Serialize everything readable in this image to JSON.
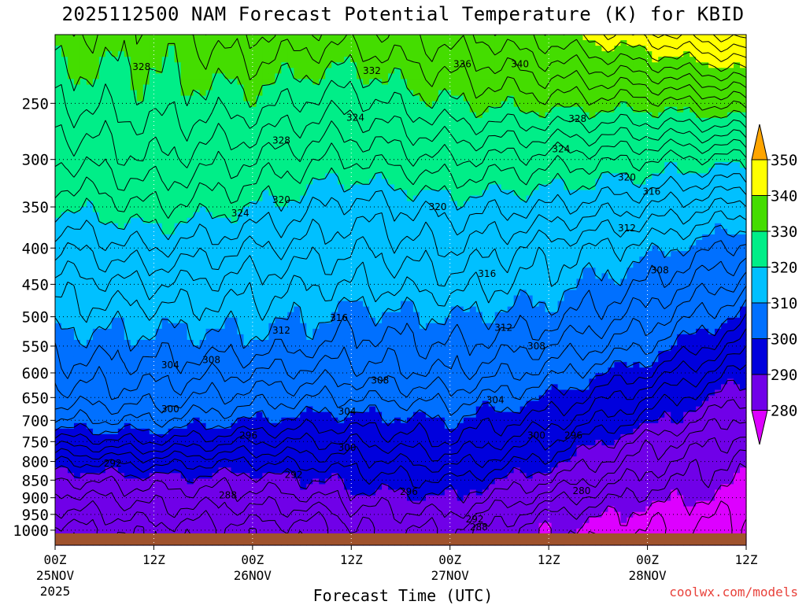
{
  "chart_data": {
    "type": "heatmap",
    "title": "2025112500 NAM Forecast Potential Temperature (K) for KBID",
    "xlabel": "Forecast Time (UTC)",
    "ylabel": "",
    "y_scale": "log-pressure",
    "ylim": [
      1050,
      200
    ],
    "xlim": [
      0,
      84
    ],
    "y_ticks": [
      250,
      300,
      350,
      400,
      450,
      500,
      550,
      600,
      650,
      700,
      750,
      800,
      850,
      900,
      950,
      1000
    ],
    "x_ticks": [
      {
        "hour": 0,
        "line1": "00Z",
        "line2": "25NOV",
        "line3": "2025"
      },
      {
        "hour": 12,
        "line1": "12Z",
        "line2": "",
        "line3": ""
      },
      {
        "hour": 24,
        "line1": "00Z",
        "line2": "26NOV",
        "line3": ""
      },
      {
        "hour": 36,
        "line1": "12Z",
        "line2": "",
        "line3": ""
      },
      {
        "hour": 48,
        "line1": "00Z",
        "line2": "27NOV",
        "line3": ""
      },
      {
        "hour": 60,
        "line1": "12Z",
        "line2": "",
        "line3": ""
      },
      {
        "hour": 72,
        "line1": "00Z",
        "line2": "28NOV",
        "line3": ""
      },
      {
        "hour": 84,
        "line1": "12Z",
        "line2": "",
        "line3": ""
      }
    ],
    "grid": true,
    "colorbar": {
      "placement": "right",
      "labels": [
        "350",
        "340",
        "330",
        "320",
        "310",
        "300",
        "290",
        "280"
      ],
      "bands": [
        {
          "from": 350,
          "to": 360,
          "color": "#ffa500"
        },
        {
          "from": 340,
          "to": 350,
          "color": "#ffff00"
        },
        {
          "from": 330,
          "to": 340,
          "color": "#44dd00"
        },
        {
          "from": 320,
          "to": 330,
          "color": "#00ee88"
        },
        {
          "from": 310,
          "to": 320,
          "color": "#00c0ff"
        },
        {
          "from": 300,
          "to": 310,
          "color": "#0070ff"
        },
        {
          "from": 290,
          "to": 300,
          "color": "#0000dd"
        },
        {
          "from": 280,
          "to": 290,
          "color": "#7000e8"
        },
        {
          "from": 270,
          "to": 280,
          "color": "#dd00ff"
        }
      ]
    },
    "contour_interval": 2,
    "theta_profiles_hours": [
      0,
      12,
      24,
      33,
      36,
      48,
      60,
      72,
      84
    ],
    "theta_profiles_pressures": [
      1000,
      950,
      900,
      850,
      800,
      750,
      700,
      650,
      600,
      550,
      500,
      450,
      400,
      350,
      300,
      250,
      200
    ],
    "theta_profiles": [
      [
        281,
        283,
        285,
        288,
        292,
        297,
        302,
        305,
        307,
        309,
        311,
        313,
        316,
        320,
        324,
        328,
        332
      ],
      [
        283,
        285,
        287,
        289,
        293,
        298,
        302,
        305,
        307,
        309,
        311,
        314,
        318,
        322,
        326,
        329,
        331
      ],
      [
        283,
        285,
        287,
        289,
        292,
        296,
        300,
        303,
        306,
        309,
        311,
        313,
        316,
        320,
        324,
        329,
        334
      ],
      [
        283,
        285,
        288,
        290,
        293,
        296,
        299,
        302,
        305,
        308,
        310,
        312,
        315,
        318,
        322,
        327,
        333
      ],
      [
        286,
        287,
        289,
        291,
        293,
        296,
        299,
        302,
        305,
        307,
        309,
        312,
        314,
        317,
        322,
        327,
        333
      ],
      [
        286,
        288,
        290,
        292,
        295,
        298,
        300,
        303,
        306,
        308,
        310,
        313,
        316,
        319,
        324,
        330,
        335
      ],
      [
        280,
        282,
        285,
        288,
        291,
        294,
        297,
        300,
        303,
        306,
        309,
        311,
        313,
        318,
        323,
        331,
        339
      ],
      [
        278,
        279,
        281,
        283,
        285,
        287,
        291,
        294,
        298,
        302,
        305,
        308,
        311,
        316,
        322,
        331,
        343
      ],
      [
        277,
        278,
        279,
        280,
        281,
        283,
        285,
        288,
        291,
        295,
        299,
        303,
        307,
        313,
        321,
        333,
        347
      ]
    ],
    "contour_labels": [
      {
        "text": "328",
        "hour": 10.5,
        "p": 222
      },
      {
        "text": "332",
        "hour": 38.5,
        "p": 225
      },
      {
        "text": "336",
        "hour": 49.5,
        "p": 220
      },
      {
        "text": "340",
        "hour": 56.5,
        "p": 220
      },
      {
        "text": "328",
        "hour": 27.5,
        "p": 282
      },
      {
        "text": "324",
        "hour": 36.5,
        "p": 262
      },
      {
        "text": "328",
        "hour": 63.5,
        "p": 263
      },
      {
        "text": "324",
        "hour": 61.5,
        "p": 290
      },
      {
        "text": "320",
        "hour": 69.5,
        "p": 318
      },
      {
        "text": "316",
        "hour": 72.5,
        "p": 333
      },
      {
        "text": "320",
        "hour": 27.5,
        "p": 342
      },
      {
        "text": "324",
        "hour": 22.5,
        "p": 357
      },
      {
        "text": "320",
        "hour": 46.5,
        "p": 350
      },
      {
        "text": "312",
        "hour": 69.5,
        "p": 375
      },
      {
        "text": "308",
        "hour": 73.5,
        "p": 430
      },
      {
        "text": "316",
        "hour": 52.5,
        "p": 435
      },
      {
        "text": "316",
        "hour": 34.5,
        "p": 502
      },
      {
        "text": "312",
        "hour": 27.5,
        "p": 523
      },
      {
        "text": "312",
        "hour": 54.5,
        "p": 518
      },
      {
        "text": "308",
        "hour": 58.5,
        "p": 550
      },
      {
        "text": "304",
        "hour": 14.0,
        "p": 585
      },
      {
        "text": "308",
        "hour": 19.0,
        "p": 575
      },
      {
        "text": "308",
        "hour": 39.5,
        "p": 615
      },
      {
        "text": "304",
        "hour": 53.5,
        "p": 655
      },
      {
        "text": "304",
        "hour": 35.5,
        "p": 680
      },
      {
        "text": "300",
        "hour": 14.0,
        "p": 675
      },
      {
        "text": "296",
        "hour": 23.5,
        "p": 735
      },
      {
        "text": "300",
        "hour": 35.5,
        "p": 765
      },
      {
        "text": "300",
        "hour": 58.5,
        "p": 735
      },
      {
        "text": "296",
        "hour": 63.0,
        "p": 735
      },
      {
        "text": "292",
        "hour": 7.0,
        "p": 805
      },
      {
        "text": "292",
        "hour": 29.0,
        "p": 835
      },
      {
        "text": "296",
        "hour": 43.0,
        "p": 882
      },
      {
        "text": "288",
        "hour": 21.0,
        "p": 893
      },
      {
        "text": "292",
        "hour": 51.0,
        "p": 965
      },
      {
        "text": "288",
        "hour": 51.5,
        "p": 990
      },
      {
        "text": "280",
        "hour": 64.0,
        "p": 880
      }
    ]
  },
  "credit": "coolwx.com/models"
}
